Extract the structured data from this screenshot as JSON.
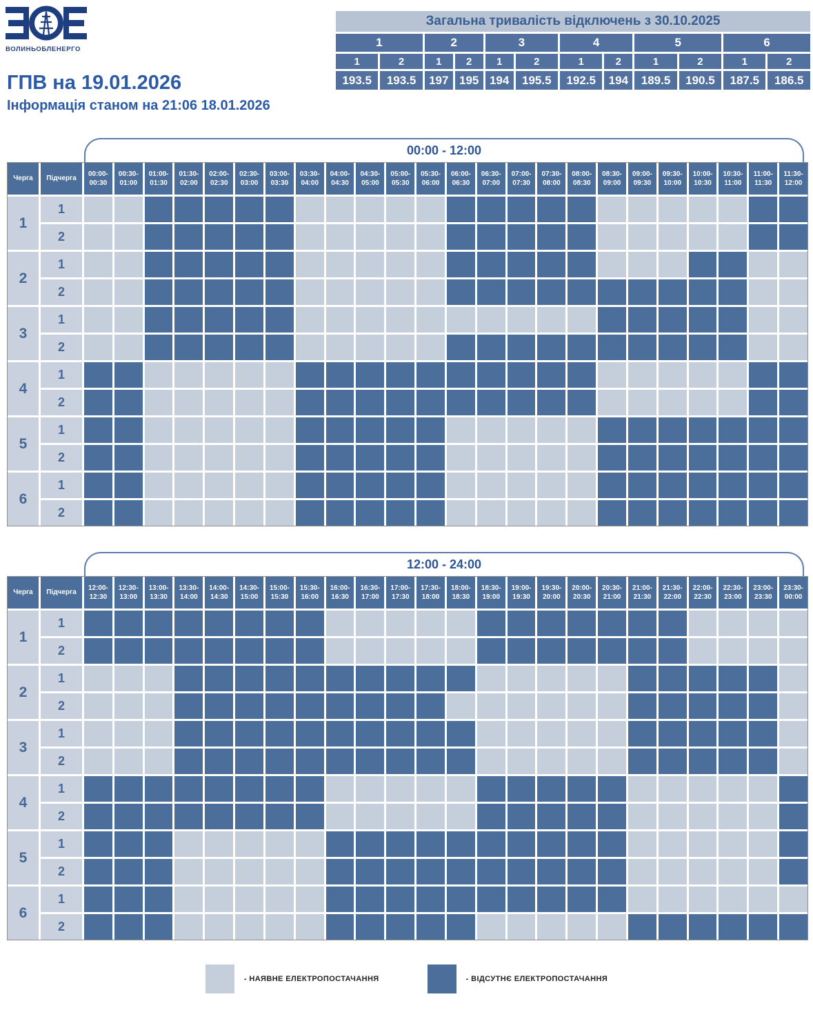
{
  "logo": {
    "monogram": "ЗОЕ",
    "brand": "ВОЛИНЬОБЛЕНЕРГО"
  },
  "title": "ГПВ на 19.01.2026",
  "subtitle": "Інформація станом на 21:06 18.01.2026",
  "totals": {
    "title": "Загальна тривалість відключень з 30.10.2025",
    "groups": [
      {
        "label": "1",
        "subs": [
          "1",
          "2"
        ],
        "values": [
          "193.5",
          "193.5"
        ]
      },
      {
        "label": "2",
        "subs": [
          "1",
          "2"
        ],
        "values": [
          "197",
          "195"
        ]
      },
      {
        "label": "3",
        "subs": [
          "1",
          "2"
        ],
        "values": [
          "194",
          "195.5"
        ]
      },
      {
        "label": "4",
        "subs": [
          "1",
          "2"
        ],
        "values": [
          "192.5",
          "194"
        ]
      },
      {
        "label": "5",
        "subs": [
          "1",
          "2"
        ],
        "values": [
          "189.5",
          "190.5"
        ]
      },
      {
        "label": "6",
        "subs": [
          "1",
          "2"
        ],
        "values": [
          "187.5",
          "186.5"
        ]
      }
    ]
  },
  "column_headers": {
    "queue": "Черга",
    "subqueue": "Підчерга"
  },
  "colors": {
    "outage": "#4C6E9B",
    "power": "#C5CFDB",
    "header": "#4C6E9B",
    "label_bg": "#C8D1DD",
    "accent_text": "#2B5AA6",
    "logo_navy": "#1F3E80"
  },
  "legend": [
    {
      "color": "#C5CFDB",
      "label": "- НАЯВНЕ ЕЛЕКТРОПОСТАЧАННЯ"
    },
    {
      "color": "#4C6E9B",
      "label": "- ВІДСУТНЄ ЕЛЕКТРОПОСТАЧАННЯ"
    }
  ],
  "cell_encoding": {
    "0": "power available",
    "1": "outage"
  },
  "schedules": [
    {
      "banner": "00:00 - 12:00",
      "slots": [
        [
          "00:00",
          "00:30"
        ],
        [
          "00:30",
          "01:00"
        ],
        [
          "01:00",
          "01:30"
        ],
        [
          "01:30",
          "02:00"
        ],
        [
          "02:00",
          "02:30"
        ],
        [
          "02:30",
          "03:00"
        ],
        [
          "03:00",
          "03:30"
        ],
        [
          "03:30",
          "04:00"
        ],
        [
          "04:00",
          "04:30"
        ],
        [
          "04:30",
          "05:00"
        ],
        [
          "05:00",
          "05:30"
        ],
        [
          "05:30",
          "06:00"
        ],
        [
          "06:00",
          "06:30"
        ],
        [
          "06:30",
          "07:00"
        ],
        [
          "07:00",
          "07:30"
        ],
        [
          "07:30",
          "08:00"
        ],
        [
          "08:00",
          "08:30"
        ],
        [
          "08:30",
          "09:00"
        ],
        [
          "09:00",
          "09:30"
        ],
        [
          "09:30",
          "10:00"
        ],
        [
          "10:00",
          "10:30"
        ],
        [
          "10:30",
          "11:00"
        ],
        [
          "11:00",
          "11:30"
        ],
        [
          "11:30",
          "12:00"
        ]
      ],
      "queues": [
        {
          "queue": "1",
          "rows": [
            {
              "subqueue": "1",
              "cells": [
                0,
                0,
                1,
                1,
                1,
                1,
                1,
                0,
                0,
                0,
                0,
                0,
                1,
                1,
                1,
                1,
                1,
                0,
                0,
                0,
                0,
                0,
                1,
                1
              ]
            },
            {
              "subqueue": "2",
              "cells": [
                0,
                0,
                1,
                1,
                1,
                1,
                1,
                0,
                0,
                0,
                0,
                0,
                1,
                1,
                1,
                1,
                1,
                0,
                0,
                0,
                0,
                0,
                1,
                1
              ]
            }
          ]
        },
        {
          "queue": "2",
          "rows": [
            {
              "subqueue": "1",
              "cells": [
                0,
                0,
                1,
                1,
                1,
                1,
                1,
                0,
                0,
                0,
                0,
                0,
                1,
                1,
                1,
                1,
                1,
                0,
                0,
                0,
                1,
                1,
                0,
                0
              ]
            },
            {
              "subqueue": "2",
              "cells": [
                0,
                0,
                1,
                1,
                1,
                1,
                1,
                0,
                0,
                0,
                0,
                0,
                1,
                1,
                1,
                1,
                1,
                1,
                1,
                1,
                1,
                1,
                0,
                0
              ]
            }
          ]
        },
        {
          "queue": "3",
          "rows": [
            {
              "subqueue": "1",
              "cells": [
                0,
                0,
                1,
                1,
                1,
                1,
                1,
                0,
                0,
                0,
                0,
                0,
                0,
                0,
                0,
                0,
                0,
                1,
                1,
                1,
                1,
                1,
                0,
                0
              ]
            },
            {
              "subqueue": "2",
              "cells": [
                0,
                0,
                1,
                1,
                1,
                1,
                1,
                0,
                0,
                0,
                0,
                0,
                1,
                1,
                1,
                1,
                1,
                1,
                1,
                1,
                1,
                1,
                0,
                0
              ]
            }
          ]
        },
        {
          "queue": "4",
          "rows": [
            {
              "subqueue": "1",
              "cells": [
                1,
                1,
                0,
                0,
                0,
                0,
                0,
                1,
                1,
                1,
                1,
                1,
                1,
                1,
                1,
                1,
                1,
                0,
                0,
                0,
                0,
                0,
                1,
                1
              ]
            },
            {
              "subqueue": "2",
              "cells": [
                1,
                1,
                0,
                0,
                0,
                0,
                0,
                1,
                1,
                1,
                1,
                1,
                1,
                1,
                1,
                1,
                1,
                0,
                0,
                0,
                0,
                0,
                1,
                1
              ]
            }
          ]
        },
        {
          "queue": "5",
          "rows": [
            {
              "subqueue": "1",
              "cells": [
                1,
                1,
                0,
                0,
                0,
                0,
                0,
                1,
                1,
                1,
                1,
                1,
                0,
                0,
                0,
                0,
                0,
                1,
                1,
                1,
                1,
                1,
                1,
                1
              ]
            },
            {
              "subqueue": "2",
              "cells": [
                1,
                1,
                0,
                0,
                0,
                0,
                0,
                1,
                1,
                1,
                1,
                1,
                0,
                0,
                0,
                0,
                0,
                1,
                1,
                1,
                1,
                1,
                1,
                1
              ]
            }
          ]
        },
        {
          "queue": "6",
          "rows": [
            {
              "subqueue": "1",
              "cells": [
                1,
                1,
                0,
                0,
                0,
                0,
                0,
                1,
                1,
                1,
                1,
                1,
                0,
                0,
                0,
                0,
                0,
                1,
                1,
                1,
                1,
                1,
                1,
                1
              ]
            },
            {
              "subqueue": "2",
              "cells": [
                1,
                1,
                0,
                0,
                0,
                0,
                0,
                1,
                1,
                1,
                1,
                1,
                0,
                0,
                0,
                0,
                0,
                1,
                1,
                1,
                1,
                1,
                1,
                1
              ]
            }
          ]
        }
      ]
    },
    {
      "banner": "12:00 - 24:00",
      "slots": [
        [
          "12:00",
          "12:30"
        ],
        [
          "12:30",
          "13:00"
        ],
        [
          "13:00",
          "13:30"
        ],
        [
          "13:30",
          "14:00"
        ],
        [
          "14:00",
          "14:30"
        ],
        [
          "14:30",
          "15:00"
        ],
        [
          "15:00",
          "15:30"
        ],
        [
          "15:30",
          "16:00"
        ],
        [
          "16:00",
          "16:30"
        ],
        [
          "16:30",
          "17:00"
        ],
        [
          "17:00",
          "17:30"
        ],
        [
          "17:30",
          "18:00"
        ],
        [
          "18:00",
          "18:30"
        ],
        [
          "18:30",
          "19:00"
        ],
        [
          "19:00",
          "19:30"
        ],
        [
          "19:30",
          "20:00"
        ],
        [
          "20:00",
          "20:30"
        ],
        [
          "20:30",
          "21:00"
        ],
        [
          "21:00",
          "21:30"
        ],
        [
          "21:30",
          "22:00"
        ],
        [
          "22:00",
          "22:30"
        ],
        [
          "22:30",
          "23:00"
        ],
        [
          "23:00",
          "23:30"
        ],
        [
          "23:30",
          "00:00"
        ]
      ],
      "queues": [
        {
          "queue": "1",
          "rows": [
            {
              "subqueue": "1",
              "cells": [
                1,
                1,
                1,
                1,
                1,
                1,
                1,
                1,
                0,
                0,
                0,
                0,
                0,
                1,
                1,
                1,
                1,
                1,
                1,
                1,
                0,
                0,
                0,
                0
              ]
            },
            {
              "subqueue": "2",
              "cells": [
                1,
                1,
                1,
                1,
                1,
                1,
                1,
                1,
                0,
                0,
                0,
                0,
                0,
                1,
                1,
                1,
                1,
                1,
                1,
                1,
                0,
                0,
                0,
                0
              ]
            }
          ]
        },
        {
          "queue": "2",
          "rows": [
            {
              "subqueue": "1",
              "cells": [
                0,
                0,
                0,
                1,
                1,
                1,
                1,
                1,
                1,
                1,
                1,
                1,
                1,
                0,
                0,
                0,
                0,
                0,
                1,
                1,
                1,
                1,
                1,
                0
              ]
            },
            {
              "subqueue": "2",
              "cells": [
                0,
                0,
                0,
                1,
                1,
                1,
                1,
                1,
                1,
                1,
                1,
                1,
                0,
                0,
                0,
                0,
                0,
                0,
                1,
                1,
                1,
                1,
                1,
                0
              ]
            }
          ]
        },
        {
          "queue": "3",
          "rows": [
            {
              "subqueue": "1",
              "cells": [
                0,
                0,
                0,
                1,
                1,
                1,
                1,
                1,
                1,
                1,
                1,
                1,
                1,
                0,
                0,
                0,
                0,
                0,
                1,
                1,
                1,
                1,
                1,
                0
              ]
            },
            {
              "subqueue": "2",
              "cells": [
                0,
                0,
                0,
                1,
                1,
                1,
                1,
                1,
                1,
                1,
                1,
                1,
                1,
                0,
                0,
                0,
                0,
                0,
                1,
                1,
                1,
                1,
                1,
                0
              ]
            }
          ]
        },
        {
          "queue": "4",
          "rows": [
            {
              "subqueue": "1",
              "cells": [
                1,
                1,
                1,
                1,
                1,
                1,
                1,
                1,
                0,
                0,
                0,
                0,
                0,
                1,
                1,
                1,
                1,
                1,
                0,
                0,
                0,
                0,
                0,
                1
              ]
            },
            {
              "subqueue": "2",
              "cells": [
                1,
                1,
                1,
                1,
                1,
                1,
                1,
                1,
                0,
                0,
                0,
                0,
                0,
                1,
                1,
                1,
                1,
                1,
                0,
                0,
                0,
                0,
                0,
                1
              ]
            }
          ]
        },
        {
          "queue": "5",
          "rows": [
            {
              "subqueue": "1",
              "cells": [
                1,
                1,
                1,
                0,
                0,
                0,
                0,
                0,
                1,
                1,
                1,
                1,
                1,
                1,
                1,
                1,
                1,
                1,
                0,
                0,
                0,
                0,
                0,
                1
              ]
            },
            {
              "subqueue": "2",
              "cells": [
                1,
                1,
                1,
                0,
                0,
                0,
                0,
                0,
                1,
                1,
                1,
                1,
                1,
                1,
                1,
                1,
                1,
                1,
                0,
                0,
                0,
                0,
                0,
                1
              ]
            }
          ]
        },
        {
          "queue": "6",
          "rows": [
            {
              "subqueue": "1",
              "cells": [
                1,
                1,
                1,
                0,
                0,
                0,
                0,
                0,
                1,
                1,
                1,
                1,
                1,
                1,
                1,
                1,
                1,
                1,
                0,
                0,
                0,
                0,
                0,
                0
              ]
            },
            {
              "subqueue": "2",
              "cells": [
                1,
                1,
                1,
                0,
                0,
                0,
                0,
                0,
                1,
                1,
                1,
                1,
                1,
                0,
                0,
                0,
                0,
                0,
                1,
                1,
                1,
                1,
                1,
                1
              ]
            }
          ]
        }
      ]
    }
  ]
}
